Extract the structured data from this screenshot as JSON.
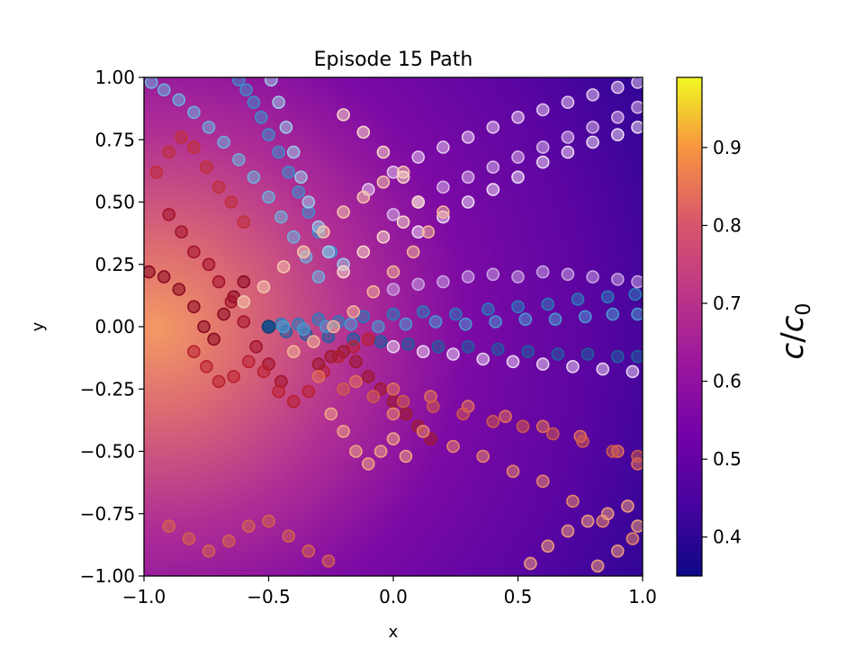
{
  "chart_data": {
    "type": "scatter",
    "title": "Episode 15 Path",
    "xlabel": "x",
    "ylabel": "y",
    "xlim": [
      -1.0,
      1.0
    ],
    "ylim": [
      -1.0,
      1.0
    ],
    "xticks": [
      "−1.0",
      "−0.5",
      "0.0",
      "0.5",
      "1.0"
    ],
    "yticks": [
      "−1.00",
      "−0.75",
      "−0.50",
      "−0.25",
      "0.00",
      "0.25",
      "0.50",
      "0.75",
      "1.00"
    ],
    "grid": false,
    "background_field": {
      "type": "heatmap",
      "colormap": "plasma",
      "description_range": [
        0.35,
        0.99
      ],
      "peak": [
        -1.0,
        0.0
      ],
      "low_corner": [
        1.0,
        -0.4
      ]
    },
    "colorbar": {
      "label_c": "c",
      "label_slash": "/",
      "label_c0": "c",
      "label_sub": "0",
      "range": [
        0.35,
        0.99
      ],
      "ticks": [
        "0.4",
        "0.5",
        "0.6",
        "0.7",
        "0.8",
        "0.9"
      ],
      "tick_values": [
        0.4,
        0.5,
        0.6,
        0.7,
        0.8,
        0.9
      ]
    },
    "start_point": [
      -0.5,
      0.0
    ],
    "series": [
      {
        "group": "blue",
        "color": "#2b7bba",
        "x": [
          -0.5,
          -0.45,
          -0.38,
          -0.3,
          -0.22,
          -0.12,
          0.0,
          0.12,
          0.25,
          0.38,
          0.5,
          0.62,
          0.74,
          0.86,
          0.97
        ],
        "y": [
          0.0,
          0.01,
          0.01,
          0.03,
          0.02,
          0.04,
          0.05,
          0.06,
          0.05,
          0.07,
          0.08,
          0.09,
          0.11,
          0.12,
          0.13
        ]
      },
      {
        "group": "blue",
        "color": "#1f5f9e",
        "x": [
          -0.5,
          -0.43,
          -0.35,
          -0.26,
          -0.16,
          -0.05,
          0.06,
          0.18,
          0.3,
          0.42,
          0.54,
          0.66,
          0.78,
          0.9,
          0.98
        ],
        "y": [
          0.0,
          -0.02,
          -0.03,
          -0.04,
          -0.05,
          -0.06,
          -0.07,
          -0.08,
          -0.08,
          -0.09,
          -0.1,
          -0.11,
          -0.11,
          -0.12,
          -0.12
        ]
      },
      {
        "group": "blue",
        "color": "#4a98d0",
        "x": [
          -0.5,
          -0.44,
          -0.36,
          -0.27,
          -0.17,
          -0.06,
          0.05,
          0.17,
          0.29,
          0.41,
          0.53,
          0.65,
          0.77,
          0.88,
          0.98
        ],
        "y": [
          0.0,
          0.0,
          -0.01,
          0.0,
          0.01,
          0.0,
          0.01,
          0.02,
          0.01,
          0.02,
          0.03,
          0.03,
          0.04,
          0.05,
          0.05
        ]
      },
      {
        "group": "blue",
        "color": "#6cb0dc",
        "x": [
          -0.3,
          -0.35,
          -0.4,
          -0.45,
          -0.5,
          -0.56,
          -0.62,
          -0.68,
          -0.74,
          -0.8,
          -0.86,
          -0.92,
          -0.97
        ],
        "y": [
          0.2,
          0.28,
          0.36,
          0.44,
          0.52,
          0.6,
          0.67,
          0.74,
          0.8,
          0.86,
          0.91,
          0.95,
          0.98
        ]
      },
      {
        "group": "blue",
        "color": "#3e8cc8",
        "x": [
          -0.25,
          -0.3,
          -0.34,
          -0.38,
          -0.42,
          -0.46,
          -0.5,
          -0.53,
          -0.56,
          -0.59,
          -0.62
        ],
        "y": [
          0.3,
          0.38,
          0.46,
          0.54,
          0.62,
          0.7,
          0.77,
          0.84,
          0.9,
          0.95,
          0.99
        ]
      },
      {
        "group": "blue",
        "color": "#9ccbe8",
        "x": [
          -0.2,
          -0.26,
          -0.3,
          -0.34,
          -0.37,
          -0.4,
          -0.43,
          -0.46,
          -0.49
        ],
        "y": [
          0.25,
          0.3,
          0.4,
          0.5,
          0.6,
          0.7,
          0.8,
          0.9,
          0.99
        ]
      },
      {
        "group": "lavender",
        "color": "#e3c6ee",
        "x": [
          -0.1,
          0.0,
          0.1,
          0.2,
          0.3,
          0.4,
          0.5,
          0.6,
          0.7,
          0.8,
          0.9,
          0.98
        ],
        "y": [
          0.55,
          0.62,
          0.68,
          0.72,
          0.76,
          0.8,
          0.84,
          0.87,
          0.9,
          0.93,
          0.96,
          0.98
        ]
      },
      {
        "group": "lavender",
        "color": "#d8b5ea",
        "x": [
          0.0,
          0.1,
          0.2,
          0.3,
          0.4,
          0.5,
          0.6,
          0.7,
          0.8,
          0.9,
          0.98
        ],
        "y": [
          0.45,
          0.5,
          0.56,
          0.6,
          0.64,
          0.68,
          0.72,
          0.76,
          0.8,
          0.84,
          0.88
        ]
      },
      {
        "group": "lavender",
        "color": "#eddaf4",
        "x": [
          0.1,
          0.2,
          0.3,
          0.4,
          0.5,
          0.6,
          0.7,
          0.8,
          0.9,
          0.98
        ],
        "y": [
          0.38,
          0.44,
          0.5,
          0.55,
          0.6,
          0.66,
          0.7,
          0.74,
          0.77,
          0.8
        ]
      },
      {
        "group": "lavender",
        "color": "#c9a3e2",
        "x": [
          0.0,
          0.1,
          0.2,
          0.3,
          0.4,
          0.5,
          0.6,
          0.7,
          0.8,
          0.9,
          0.98
        ],
        "y": [
          0.15,
          0.17,
          0.18,
          0.2,
          0.21,
          0.2,
          0.22,
          0.21,
          0.2,
          0.19,
          0.18
        ]
      },
      {
        "group": "lavender",
        "color": "#e8d2f1",
        "x": [
          0.0,
          0.12,
          0.24,
          0.36,
          0.48,
          0.6,
          0.72,
          0.84,
          0.96
        ],
        "y": [
          -0.08,
          -0.1,
          -0.11,
          -0.13,
          -0.14,
          -0.15,
          -0.16,
          -0.17,
          -0.18
        ]
      },
      {
        "group": "dark_red",
        "color": "#8b0a22",
        "x": [
          -0.98,
          -0.92,
          -0.86,
          -0.8,
          -0.76,
          -0.72,
          -0.68,
          -0.64,
          -0.6
        ],
        "y": [
          0.22,
          0.2,
          0.15,
          0.08,
          0.0,
          -0.05,
          0.05,
          0.12,
          0.18
        ]
      },
      {
        "group": "dark_red",
        "color": "#a3122a",
        "x": [
          -0.9,
          -0.85,
          -0.8,
          -0.74,
          -0.7,
          -0.65,
          -0.6,
          -0.55,
          -0.5,
          -0.45
        ],
        "y": [
          0.45,
          0.38,
          0.3,
          0.25,
          0.18,
          0.1,
          0.02,
          -0.08,
          -0.15,
          -0.22
        ]
      },
      {
        "group": "dark_red",
        "color": "#b9202f",
        "x": [
          -0.8,
          -0.75,
          -0.7,
          -0.64,
          -0.58,
          -0.52,
          -0.46,
          -0.4,
          -0.34,
          -0.28,
          -0.22,
          -0.16,
          -0.1
        ],
        "y": [
          -0.1,
          -0.16,
          -0.22,
          -0.2,
          -0.14,
          -0.18,
          -0.26,
          -0.3,
          -0.26,
          -0.18,
          -0.12,
          -0.08,
          -0.05
        ]
      },
      {
        "group": "dark_red",
        "color": "#c0303a",
        "x": [
          -0.95,
          -0.9,
          -0.85,
          -0.8,
          -0.75,
          -0.7,
          -0.65,
          -0.6
        ],
        "y": [
          0.62,
          0.7,
          0.76,
          0.72,
          0.64,
          0.56,
          0.5,
          0.42
        ]
      },
      {
        "group": "dark_red",
        "color": "#9e1a2e",
        "x": [
          -0.3,
          -0.25,
          -0.2,
          -0.15,
          -0.1,
          -0.05,
          0.0,
          0.05,
          0.1,
          0.15
        ],
        "y": [
          -0.15,
          -0.12,
          -0.1,
          -0.14,
          -0.2,
          -0.25,
          -0.3,
          -0.35,
          -0.4,
          -0.45
        ]
      },
      {
        "group": "salmon",
        "color": "#e0705a",
        "x": [
          -0.3,
          -0.15,
          0.0,
          0.15,
          0.3,
          0.45,
          0.6,
          0.75,
          0.9,
          0.98
        ],
        "y": [
          -0.2,
          -0.22,
          -0.25,
          -0.28,
          -0.32,
          -0.36,
          -0.4,
          -0.44,
          -0.5,
          -0.55
        ]
      },
      {
        "group": "salmon",
        "color": "#e8866c",
        "x": [
          0.0,
          0.12,
          0.24,
          0.36,
          0.48,
          0.6,
          0.72,
          0.84,
          0.96
        ],
        "y": [
          -0.35,
          -0.42,
          -0.48,
          -0.52,
          -0.58,
          -0.62,
          -0.7,
          -0.78,
          -0.85
        ]
      },
      {
        "group": "salmon",
        "color": "#cf5a4c",
        "x": [
          -0.2,
          -0.08,
          0.04,
          0.16,
          0.28,
          0.4,
          0.52,
          0.64,
          0.76,
          0.88,
          0.98
        ],
        "y": [
          -0.25,
          -0.28,
          -0.3,
          -0.32,
          -0.35,
          -0.38,
          -0.4,
          -0.43,
          -0.46,
          -0.5,
          -0.52
        ]
      },
      {
        "group": "salmon",
        "color": "#d4614e",
        "x": [
          -0.9,
          -0.82,
          -0.74,
          -0.66,
          -0.58,
          -0.5,
          -0.42,
          -0.34,
          -0.26
        ],
        "y": [
          -0.8,
          -0.85,
          -0.9,
          -0.86,
          -0.8,
          -0.78,
          -0.84,
          -0.9,
          -0.94
        ]
      },
      {
        "group": "salmon",
        "color": "#ec9a7e",
        "x": [
          0.55,
          0.62,
          0.7,
          0.78,
          0.86,
          0.94,
          0.98,
          0.9,
          0.82
        ],
        "y": [
          -0.95,
          -0.88,
          -0.82,
          -0.78,
          -0.75,
          -0.72,
          -0.8,
          -0.9,
          -0.96
        ]
      },
      {
        "group": "peach",
        "color": "#f6c4ac",
        "x": [
          -0.6,
          -0.52,
          -0.44,
          -0.36,
          -0.28,
          -0.2,
          -0.12,
          -0.04,
          0.04
        ],
        "y": [
          0.1,
          0.16,
          0.24,
          0.3,
          0.38,
          0.46,
          0.52,
          0.58,
          0.62
        ]
      },
      {
        "group": "peach",
        "color": "#f3b497",
        "x": [
          -0.4,
          -0.32,
          -0.24,
          -0.16,
          -0.08,
          0.0,
          0.08,
          0.14,
          0.2
        ],
        "y": [
          -0.1,
          -0.06,
          0.0,
          0.06,
          0.14,
          0.22,
          0.3,
          0.38,
          0.46
        ]
      },
      {
        "group": "peach",
        "color": "#f9d8c8",
        "x": [
          -0.2,
          -0.12,
          -0.04,
          0.04,
          0.1,
          0.04,
          -0.04,
          -0.12,
          -0.2
        ],
        "y": [
          0.85,
          0.78,
          0.7,
          0.6,
          0.5,
          0.42,
          0.36,
          0.3,
          0.22
        ]
      },
      {
        "group": "peach",
        "color": "#f0a485",
        "x": [
          -0.25,
          -0.2,
          -0.15,
          -0.1,
          -0.05,
          0.0,
          0.05
        ],
        "y": [
          -0.35,
          -0.42,
          -0.5,
          -0.55,
          -0.5,
          -0.45,
          -0.52
        ]
      }
    ]
  }
}
